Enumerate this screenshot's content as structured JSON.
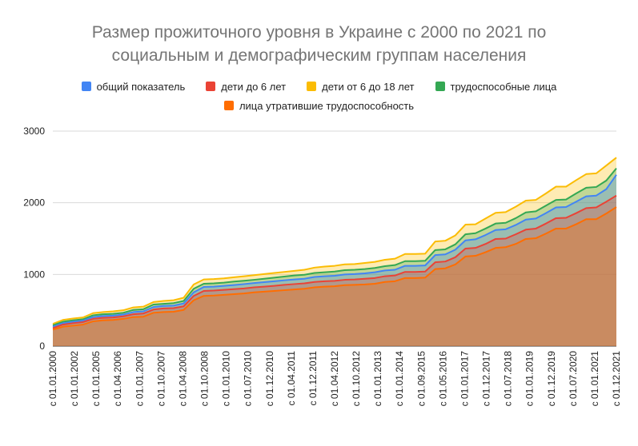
{
  "chart_data": {
    "type": "area",
    "title_lines": [
      "Размер прожиточного уровня в Украине с 2000 по 2021 по",
      "социальным и демографическим группам  населения"
    ],
    "xlabel": "",
    "ylabel": "",
    "ylim": [
      0,
      3000
    ],
    "yticks": [
      "0",
      "1000",
      "2000",
      "3000"
    ],
    "grid": true,
    "legend_position": "top",
    "x_tick_labels": [
      "с 01.01.2000",
      "с 01.01.2002",
      "с 01.01.2005",
      "с 01.04.2006",
      "с 01.01.2007",
      "с 01.10.2007",
      "с 01.04.2008",
      "с 01.10.2008",
      "с 01.01.2010",
      "с 01.07.2010",
      "с 01.12.2010",
      "с 01.04.2011",
      "с 01.12.2011",
      "с 01.04.2012",
      "с 01.10.2012",
      "с 01.01.2013",
      "с 01.01.2014",
      "с 01.09.2015",
      "с 01.05.2016",
      "с 01.01.2017",
      "с 01.12.2017",
      "с 01.07.2018",
      "с 01.01.2019",
      "с 01.12.2019",
      "с 01.07.2020",
      "с 01.01.2021",
      "с 01.12.2021"
    ],
    "series": [
      {
        "name": "лица утратившие трудоспособность",
        "color": "#ff6d01",
        "values": [
          230,
          270,
          285,
          300,
          345,
          360,
          365,
          380,
          405,
          410,
          465,
          475,
          480,
          505,
          640,
          700,
          705,
          715,
          725,
          735,
          750,
          760,
          770,
          780,
          790,
          800,
          820,
          830,
          835,
          850,
          855,
          860,
          870,
          895,
          905,
          950,
          950,
          955,
          1075,
          1085,
          1140,
          1250,
          1260,
          1310,
          1370,
          1380,
          1425,
          1495,
          1505,
          1570,
          1640,
          1640,
          1700,
          1770,
          1770,
          1850,
          1940
        ]
      },
      {
        "name": "дети до 6 лет",
        "color": "#ea4335",
        "values": [
          250,
          300,
          320,
          335,
          380,
          395,
          400,
          415,
          445,
          455,
          510,
          525,
          530,
          555,
          700,
          770,
          775,
          785,
          795,
          805,
          820,
          830,
          840,
          855,
          865,
          875,
          895,
          905,
          910,
          925,
          930,
          940,
          950,
          975,
          985,
          1035,
          1035,
          1040,
          1170,
          1180,
          1240,
          1360,
          1370,
          1425,
          1495,
          1500,
          1560,
          1625,
          1640,
          1710,
          1785,
          1790,
          1855,
          1925,
          1935,
          2015,
          2100
        ]
      },
      {
        "name": "общий показатель",
        "color": "#4285f4",
        "values": [
          270,
          320,
          340,
          355,
          405,
          420,
          425,
          440,
          475,
          485,
          545,
          560,
          565,
          595,
          750,
          825,
          830,
          840,
          852,
          865,
          880,
          892,
          905,
          918,
          930,
          940,
          965,
          975,
          982,
          1000,
          1005,
          1015,
          1030,
          1055,
          1065,
          1120,
          1120,
          1125,
          1270,
          1280,
          1345,
          1475,
          1490,
          1550,
          1620,
          1630,
          1690,
          1765,
          1780,
          1855,
          1935,
          1940,
          2015,
          2090,
          2100,
          2190,
          2390
        ]
      },
      {
        "name": "трудоспособные лица",
        "color": "#34a853",
        "values": [
          290,
          340,
          360,
          375,
          430,
          445,
          450,
          465,
          505,
          515,
          580,
          590,
          600,
          630,
          800,
          870,
          875,
          885,
          900,
          912,
          925,
          940,
          955,
          970,
          985,
          995,
          1020,
          1030,
          1040,
          1060,
          1065,
          1075,
          1090,
          1115,
          1130,
          1185,
          1185,
          1190,
          1340,
          1350,
          1420,
          1560,
          1575,
          1640,
          1710,
          1720,
          1785,
          1865,
          1880,
          1960,
          2040,
          2045,
          2130,
          2210,
          2220,
          2310,
          2480
        ]
      },
      {
        "name": "дети от 6 до 18 лет",
        "color": "#fbbc04",
        "values": [
          310,
          365,
          385,
          400,
          460,
          475,
          485,
          500,
          540,
          550,
          615,
          630,
          640,
          675,
          860,
          930,
          935,
          945,
          960,
          975,
          990,
          1005,
          1020,
          1035,
          1050,
          1065,
          1095,
          1110,
          1120,
          1140,
          1145,
          1160,
          1175,
          1205,
          1220,
          1285,
          1285,
          1290,
          1460,
          1470,
          1545,
          1695,
          1700,
          1780,
          1860,
          1870,
          1945,
          2030,
          2040,
          2130,
          2225,
          2225,
          2315,
          2400,
          2410,
          2520,
          2630
        ]
      }
    ]
  },
  "legend": {
    "rows": [
      [
        {
          "label": "общий показатель",
          "color": "#4285f4"
        },
        {
          "label": "дети до 6 лет",
          "color": "#ea4335"
        },
        {
          "label": "дети от 6 до 18 лет",
          "color": "#fbbc04"
        },
        {
          "label": "трудоспособные лица",
          "color": "#34a853"
        }
      ],
      [
        {
          "label": "лица утратившие трудоспособность",
          "color": "#ff6d01"
        }
      ]
    ]
  }
}
